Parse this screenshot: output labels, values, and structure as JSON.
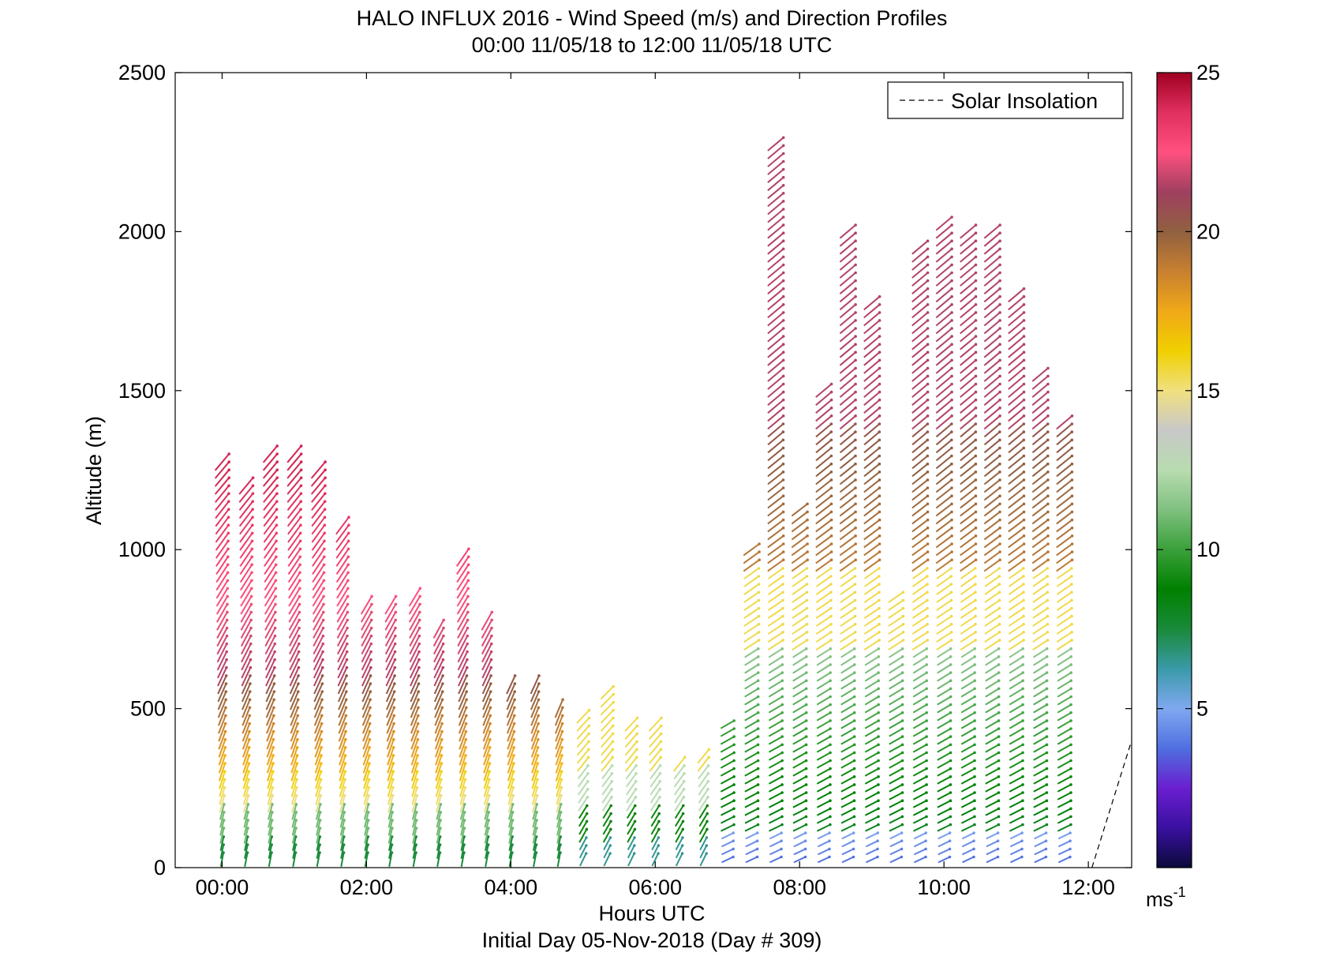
{
  "title_line1": "HALO INFLUX 2016 - Wind Speed (m/s) and Direction Profiles",
  "title_line2": "00:00 11/05/18 to 12:00 11/05/18  UTC",
  "xlabel": "Hours UTC",
  "footer": "Initial Day 05-Nov-2018 (Day # 309)",
  "ylabel": "Altitude (m)",
  "legend_label": "Solar Insolation",
  "colorbar_unit": "ms",
  "colorbar_unit_sup": "-1",
  "chart_data": {
    "type": "quiver",
    "x_ticks": [
      "00:00",
      "02:00",
      "04:00",
      "06:00",
      "08:00",
      "10:00",
      "12:00"
    ],
    "x_tick_hours": [
      0,
      2,
      4,
      6,
      8,
      10,
      12
    ],
    "xlim_hours": [
      -0.65,
      12.6
    ],
    "ylim": [
      0,
      2500
    ],
    "y_ticks": [
      0,
      500,
      1000,
      1500,
      2000,
      2500
    ],
    "colorbar_ticks": [
      5,
      10,
      15,
      20,
      25
    ],
    "colorbar_range": [
      0,
      25
    ],
    "legend_position": "top-right",
    "grid": false,
    "solar_insolation_line": {
      "x_hours": [
        12.05,
        12.6
      ],
      "y": [
        0,
        400
      ]
    },
    "profile_interval_hours": 0.333,
    "profiles": [
      {
        "t": 0.0,
        "top": 1280
      },
      {
        "t": 0.333,
        "top": 1200
      },
      {
        "t": 0.667,
        "top": 1320
      },
      {
        "t": 1.0,
        "top": 1320
      },
      {
        "t": 1.333,
        "top": 1250
      },
      {
        "t": 1.667,
        "top": 1080
      },
      {
        "t": 2.0,
        "top": 830
      },
      {
        "t": 2.333,
        "top": 840
      },
      {
        "t": 2.667,
        "top": 870
      },
      {
        "t": 3.0,
        "top": 750
      },
      {
        "t": 3.333,
        "top": 980
      },
      {
        "t": 3.667,
        "top": 790
      },
      {
        "t": 4.0,
        "top": 580
      },
      {
        "t": 4.333,
        "top": 590
      },
      {
        "t": 4.667,
        "top": 500
      },
      {
        "t": 5.0,
        "top": 490
      },
      {
        "t": 5.333,
        "top": 550
      },
      {
        "t": 5.667,
        "top": 460
      },
      {
        "t": 6.0,
        "top": 460
      },
      {
        "t": 6.333,
        "top": 340
      },
      {
        "t": 6.667,
        "top": 370
      },
      {
        "t": 7.0,
        "top": 460
      },
      {
        "t": 7.333,
        "top": 1010
      },
      {
        "t": 7.667,
        "top": 2280
      },
      {
        "t": 8.0,
        "top": 1130
      },
      {
        "t": 8.333,
        "top": 1520
      },
      {
        "t": 8.667,
        "top": 2000
      },
      {
        "t": 9.0,
        "top": 1790
      },
      {
        "t": 9.333,
        "top": 850
      },
      {
        "t": 9.667,
        "top": 1960
      },
      {
        "t": 10.0,
        "top": 2040
      },
      {
        "t": 10.333,
        "top": 2000
      },
      {
        "t": 10.667,
        "top": 2000
      },
      {
        "t": 11.0,
        "top": 1820
      },
      {
        "t": 11.333,
        "top": 1570
      },
      {
        "t": 11.667,
        "top": 1400
      }
    ]
  },
  "colors": {
    "colormap": [
      "#0a0a3a",
      "#3a10a0",
      "#6a1fd0",
      "#4f6fe0",
      "#7fa8f0",
      "#3a9aa8",
      "#1a8a3a",
      "#008000",
      "#3aa03a",
      "#7fc07f",
      "#b8dcb0",
      "#c8c8c8",
      "#f0e080",
      "#f0d000",
      "#f0a818",
      "#c88030",
      "#906040",
      "#a04060",
      "#ff5080",
      "#e03060",
      "#a00020"
    ],
    "legend_line": "#000000"
  }
}
